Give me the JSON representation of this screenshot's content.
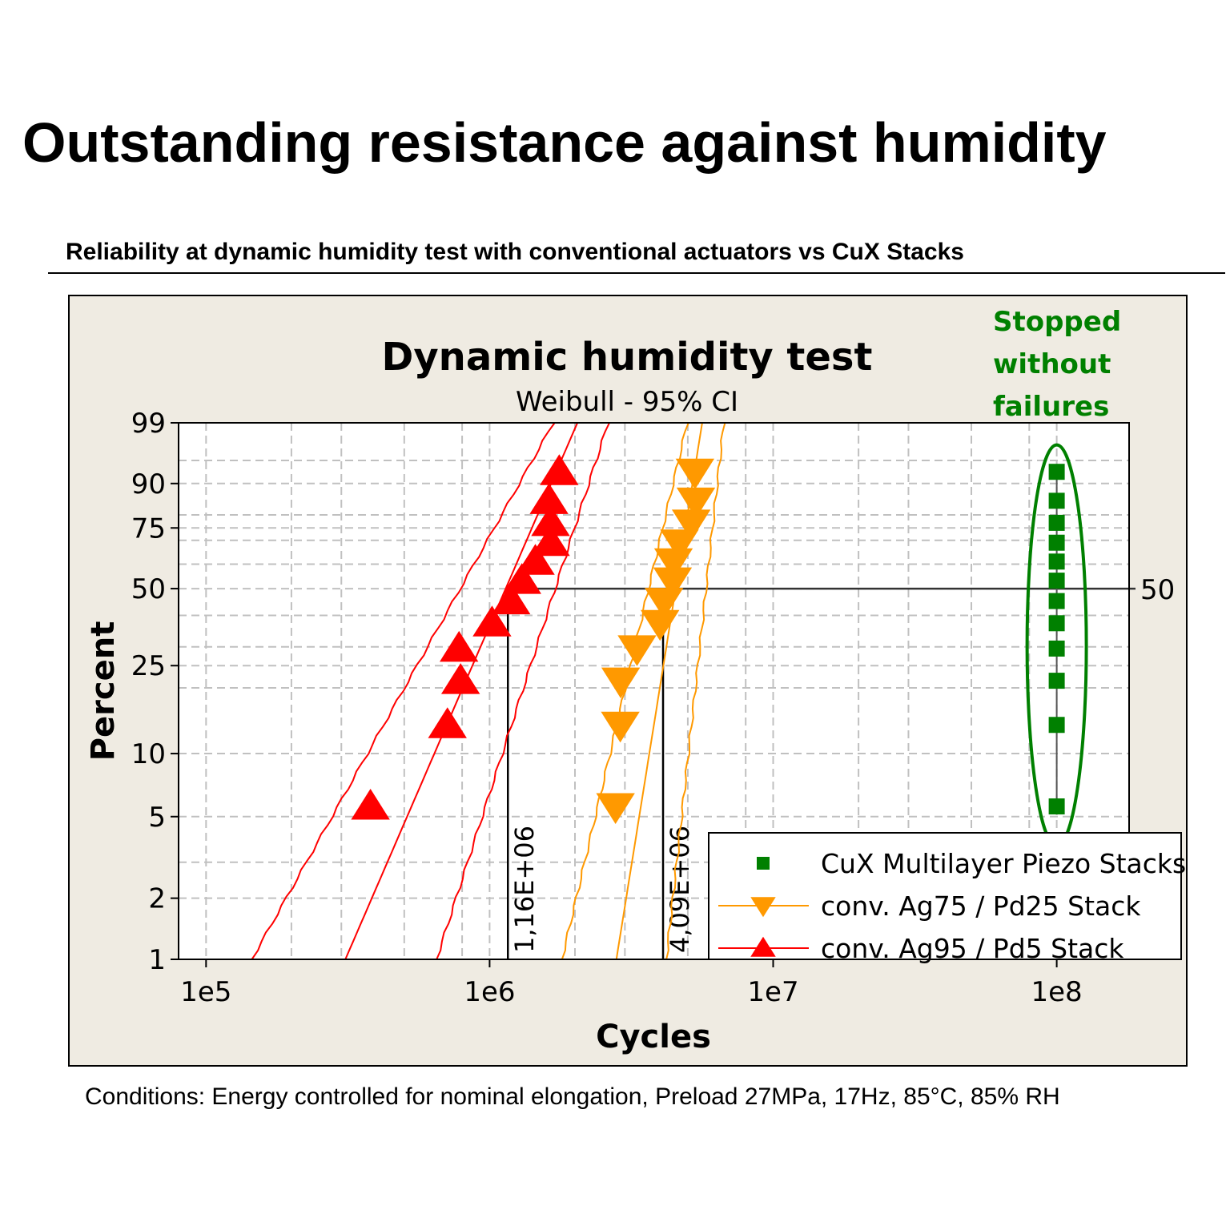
{
  "page": {
    "title": "Outstanding resistance against humidity",
    "subtitle": "Reliability at dynamic humidity test with conventional actuators vs CuX Stacks",
    "conditions": "Conditions: Energy controlled for nominal elongation, Preload 27MPa, 17Hz, 85°C, 85% RH"
  },
  "colors": {
    "panel_bg": "#efebe2",
    "red": "#ff0000",
    "orange": "#ff9900",
    "green": "#008000",
    "grid": "#c0c0c0"
  },
  "chart_data": {
    "type": "scatter",
    "title": "Dynamic humidity test",
    "subtitle": "Weibull - 95% CI",
    "xlabel": "Cycles",
    "ylabel": "Percent",
    "x_scale": "log",
    "y_scale": "weibull",
    "xlim": [
      80000,
      180000000
    ],
    "ylim": [
      1,
      99
    ],
    "x_ticks": [
      {
        "value": 100000,
        "label": "1e5"
      },
      {
        "value": 1000000,
        "label": "1e6"
      },
      {
        "value": 10000000,
        "label": "1e7"
      },
      {
        "value": 100000000,
        "label": "1e8"
      }
    ],
    "x_minor_ticks": [
      200000,
      300000,
      500000,
      800000,
      2000000,
      3000000,
      5000000,
      8000000,
      20000000,
      30000000,
      50000000,
      80000000
    ],
    "y_ticks": [
      1,
      2,
      5,
      10,
      25,
      50,
      75,
      90,
      99
    ],
    "y_minor_ticks": [
      3,
      20,
      30,
      40,
      60,
      70,
      80,
      95
    ],
    "reference_line": {
      "percent": 50,
      "label": "50"
    },
    "annotation": "Stopped\nwithout\nfailures",
    "legend_position": "bottom-right",
    "series": [
      {
        "name": "CuX Multilayer Piezo Stacks",
        "marker": "square",
        "color": "#008000",
        "x": [
          100000000,
          100000000,
          100000000,
          100000000,
          100000000,
          100000000,
          100000000,
          100000000,
          100000000,
          100000000,
          100000000,
          100000000
        ],
        "y": [
          5.6,
          13.6,
          21.5,
          29.5,
          37.3,
          45.2,
          53.2,
          61.1,
          69,
          77,
          84.9,
          92.8
        ]
      },
      {
        "name": "conv. Ag75 / Pd25 Stack",
        "marker": "triangle-down",
        "color": "#ff9900",
        "median": 4090000,
        "median_label": "4,09E+06",
        "x": [
          2780000,
          2890000,
          2900000,
          3310000,
          3990000,
          4120000,
          4420000,
          4450000,
          4670000,
          5140000,
          5340000,
          5300000
        ],
        "y": [
          5.6,
          13.6,
          21.5,
          29.5,
          37.3,
          45.2,
          53.2,
          61.1,
          69,
          77,
          84.9,
          92.8
        ],
        "fit": {
          "x_at_1": 2800000,
          "x_at_99": 5620000
        },
        "ci_lower": {
          "x_at_1": 1800000,
          "x_at_99": 4980000
        },
        "ci_upper": {
          "x_at_1": 4200000,
          "x_at_99": 6700000
        }
      },
      {
        "name": "conv. Ag95 / Pd5 Stack",
        "marker": "triangle-up",
        "color": "#ff0000",
        "median": 1160000,
        "median_label": "1,16E+06",
        "x": [
          380000,
          710000,
          790000,
          780000,
          1020000,
          1190000,
          1300000,
          1450000,
          1640000,
          1640000,
          1620000,
          1760000
        ],
        "y": [
          5.6,
          13.6,
          21.5,
          29.5,
          37.3,
          45.2,
          53.2,
          61.1,
          69,
          77,
          84.9,
          92.8
        ],
        "fit": {
          "x_at_1": 310000,
          "x_at_99": 2040000
        },
        "ci_lower": {
          "x_at_1": 145000,
          "x_at_99": 1680000
        },
        "ci_upper": {
          "x_at_1": 650000,
          "x_at_99": 2620000
        }
      }
    ]
  }
}
